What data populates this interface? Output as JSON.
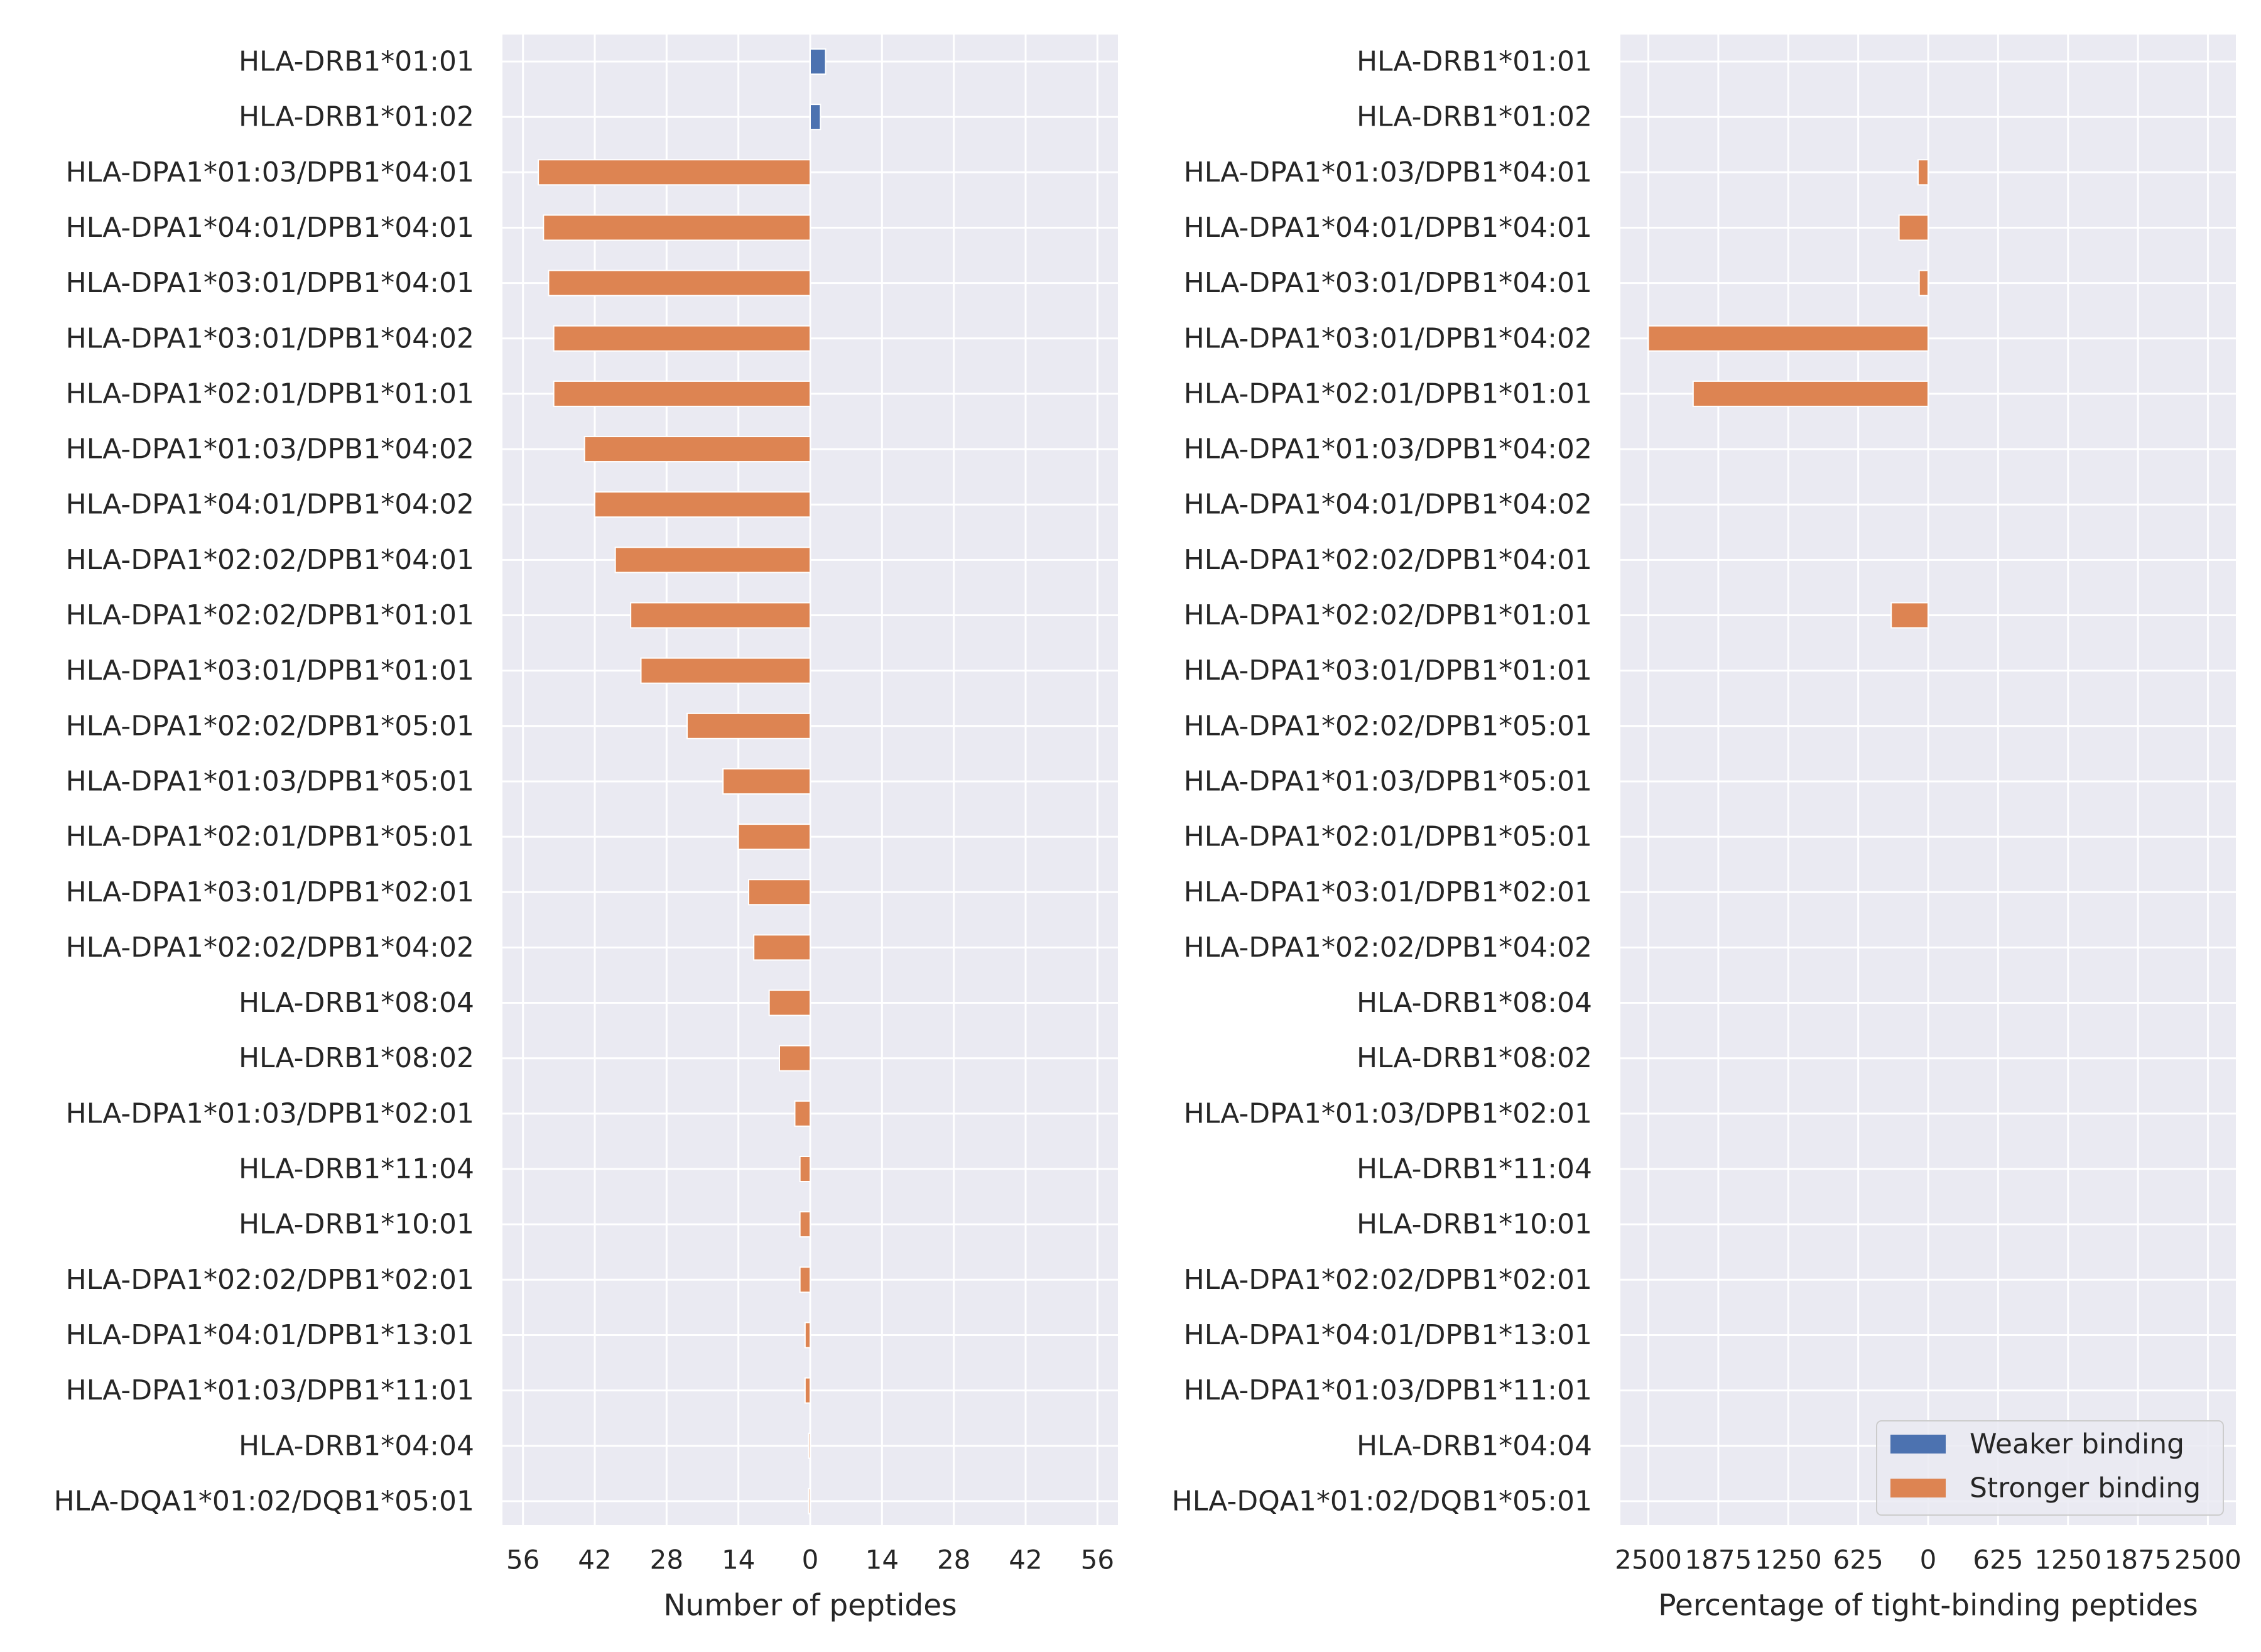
{
  "colors": {
    "panel_bg": "#eaeaf2",
    "grid": "#ffffff",
    "weaker": "#4c72b0",
    "stronger": "#dd8452",
    "text": "#262626"
  },
  "chart_data": [
    {
      "type": "bar",
      "orientation": "horizontal",
      "categories": [
        "HLA-DRB1*01:01",
        "HLA-DRB1*01:02",
        "HLA-DPA1*01:03/DPB1*04:01",
        "HLA-DPA1*04:01/DPB1*04:01",
        "HLA-DPA1*03:01/DPB1*04:01",
        "HLA-DPA1*03:01/DPB1*04:02",
        "HLA-DPA1*02:01/DPB1*01:01",
        "HLA-DPA1*01:03/DPB1*04:02",
        "HLA-DPA1*04:01/DPB1*04:02",
        "HLA-DPA1*02:02/DPB1*04:01",
        "HLA-DPA1*02:02/DPB1*01:01",
        "HLA-DPA1*03:01/DPB1*01:01",
        "HLA-DPA1*02:02/DPB1*05:01",
        "HLA-DPA1*01:03/DPB1*05:01",
        "HLA-DPA1*02:01/DPB1*05:01",
        "HLA-DPA1*03:01/DPB1*02:01",
        "HLA-DPA1*02:02/DPB1*04:02",
        "HLA-DRB1*08:04",
        "HLA-DRB1*08:02",
        "HLA-DPA1*01:03/DPB1*02:01",
        "HLA-DRB1*11:04",
        "HLA-DRB1*10:01",
        "HLA-DPA1*02:02/DPB1*02:01",
        "HLA-DPA1*04:01/DPB1*13:01",
        "HLA-DPA1*01:03/DPB1*11:01",
        "HLA-DRB1*04:04",
        "HLA-DQA1*01:02/DQB1*05:01"
      ],
      "series": [
        {
          "name": "Weaker binding",
          "values": [
            3,
            2,
            0,
            0,
            0,
            0,
            0,
            0,
            0,
            0,
            0,
            0,
            0,
            0,
            0,
            0,
            0,
            0,
            0,
            0,
            0,
            0,
            0,
            0,
            0,
            0,
            0
          ]
        },
        {
          "name": "Stronger binding",
          "values": [
            0,
            0,
            -53,
            -52,
            -51,
            -50,
            -50,
            -44,
            -42,
            -38,
            -35,
            -33,
            -24,
            -17,
            -14,
            -12,
            -11,
            -8,
            -6,
            -3,
            -2,
            -2,
            -2,
            -1,
            -1,
            -0.3,
            -0.3
          ]
        }
      ],
      "xlabel": "Number of peptides",
      "xlim": [
        -60,
        60
      ],
      "xticks": [
        -56,
        -42,
        -28,
        -14,
        0,
        14,
        28,
        42,
        56
      ],
      "xticklabels": [
        "56",
        "42",
        "28",
        "14",
        "0",
        "14",
        "28",
        "42",
        "56"
      ],
      "grid": true
    },
    {
      "type": "bar",
      "orientation": "horizontal",
      "categories": [
        "HLA-DRB1*01:01",
        "HLA-DRB1*01:02",
        "HLA-DPA1*01:03/DPB1*04:01",
        "HLA-DPA1*04:01/DPB1*04:01",
        "HLA-DPA1*03:01/DPB1*04:01",
        "HLA-DPA1*03:01/DPB1*04:02",
        "HLA-DPA1*02:01/DPB1*01:01",
        "HLA-DPA1*01:03/DPB1*04:02",
        "HLA-DPA1*04:01/DPB1*04:02",
        "HLA-DPA1*02:02/DPB1*04:01",
        "HLA-DPA1*02:02/DPB1*01:01",
        "HLA-DPA1*03:01/DPB1*01:01",
        "HLA-DPA1*02:02/DPB1*05:01",
        "HLA-DPA1*01:03/DPB1*05:01",
        "HLA-DPA1*02:01/DPB1*05:01",
        "HLA-DPA1*03:01/DPB1*02:01",
        "HLA-DPA1*02:02/DPB1*04:02",
        "HLA-DRB1*08:04",
        "HLA-DRB1*08:02",
        "HLA-DPA1*01:03/DPB1*02:01",
        "HLA-DRB1*11:04",
        "HLA-DRB1*10:01",
        "HLA-DPA1*02:02/DPB1*02:01",
        "HLA-DPA1*04:01/DPB1*13:01",
        "HLA-DPA1*01:03/DPB1*11:01",
        "HLA-DRB1*04:04",
        "HLA-DQA1*01:02/DQB1*05:01"
      ],
      "series": [
        {
          "name": "Weaker binding",
          "values": [
            0,
            0,
            0,
            0,
            0,
            0,
            0,
            0,
            0,
            0,
            0,
            0,
            0,
            0,
            0,
            0,
            0,
            0,
            0,
            0,
            0,
            0,
            0,
            0,
            0,
            0,
            0
          ]
        },
        {
          "name": "Stronger binding",
          "values": [
            0,
            0,
            -90,
            -260,
            -80,
            -2500,
            -2100,
            0,
            0,
            0,
            -330,
            0,
            0,
            0,
            0,
            0,
            0,
            0,
            0,
            0,
            0,
            0,
            0,
            0,
            0,
            0,
            0
          ]
        }
      ],
      "xlabel": "Percentage of tight-binding peptides",
      "xlim": [
        -2750,
        2750
      ],
      "xticks": [
        -2500,
        -1875,
        -1250,
        -625,
        0,
        625,
        1250,
        1875,
        2500
      ],
      "xticklabels": [
        "2500",
        "1875",
        "1250",
        "625",
        "0",
        "625",
        "1250",
        "1875",
        "2500"
      ],
      "grid": true,
      "legend": {
        "position": "bottom-right",
        "entries": [
          "Weaker binding",
          "Stronger binding"
        ]
      }
    }
  ]
}
